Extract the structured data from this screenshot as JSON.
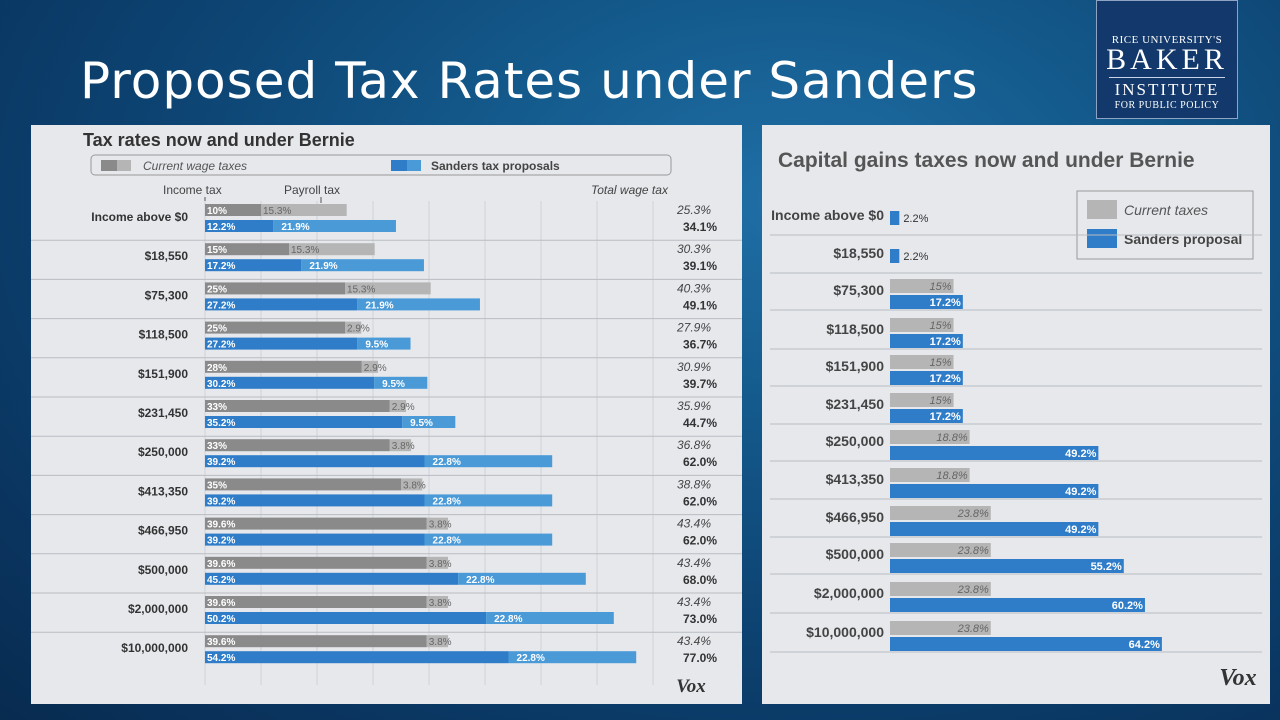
{
  "slide": {
    "title": "Proposed Tax Rates under Sanders"
  },
  "logo": {
    "line1": "RICE UNIVERSITY'S",
    "line2": "BAKER",
    "line3": "INSTITUTE",
    "line4": "FOR PUBLIC POLICY"
  },
  "colors": {
    "gray_dark": "#8a8a8a",
    "gray_light": "#b5b5b5",
    "blue_dark": "#2f7cc8",
    "blue_light": "#4a9ad8",
    "panel_bg": "#e6e8ec",
    "slide_bg": "#0d4574"
  },
  "chart_data": [
    {
      "type": "bar",
      "title": "Tax rates now and under Bernie",
      "legend": [
        "Current wage taxes",
        "Sanders tax proposals"
      ],
      "column_headers": {
        "income_tax": "Income tax",
        "payroll_tax": "Payroll tax",
        "total": "Total wage tax"
      },
      "categories": [
        "Income above $0",
        "$18,550",
        "$75,300",
        "$118,500",
        "$151,900",
        "$231,450",
        "$250,000",
        "$413,350",
        "$466,950",
        "$500,000",
        "$2,000,000",
        "$10,000,000"
      ],
      "series": [
        {
          "name": "Current wage taxes",
          "income": [
            10,
            15,
            25,
            25,
            28,
            33,
            33,
            35,
            39.6,
            39.6,
            39.6,
            39.6
          ],
          "payroll": [
            15.3,
            15.3,
            15.3,
            2.9,
            2.9,
            2.9,
            3.8,
            3.8,
            3.8,
            3.8,
            3.8,
            3.8
          ],
          "total_labels": [
            "25.3%",
            "30.3%",
            "40.3%",
            "27.9%",
            "30.9%",
            "35.9%",
            "36.8%",
            "38.8%",
            "43.4%",
            "43.4%",
            "43.4%",
            "43.4%"
          ]
        },
        {
          "name": "Sanders tax proposals",
          "income": [
            12.2,
            17.2,
            27.2,
            27.2,
            30.2,
            35.2,
            39.2,
            39.2,
            39.2,
            45.2,
            50.2,
            54.2
          ],
          "payroll": [
            21.9,
            21.9,
            21.9,
            9.5,
            9.5,
            9.5,
            22.8,
            22.8,
            22.8,
            22.8,
            22.8,
            22.8
          ],
          "total_labels": [
            "34.1%",
            "39.1%",
            "49.1%",
            "36.7%",
            "39.7%",
            "44.7%",
            "62.0%",
            "62.0%",
            "62.0%",
            "68.0%",
            "73.0%",
            "77.0%"
          ]
        }
      ],
      "source_mark": "Vox"
    },
    {
      "type": "bar",
      "title": "Capital gains taxes now and under Bernie",
      "legend": [
        "Current taxes",
        "Sanders proposal"
      ],
      "categories": [
        "Income above $0",
        "$18,550",
        "$75,300",
        "$118,500",
        "$151,900",
        "$231,450",
        "$250,000",
        "$413,350",
        "$466,950",
        "$500,000",
        "$2,000,000",
        "$10,000,000"
      ],
      "series": [
        {
          "name": "Current taxes",
          "values": [
            0,
            0,
            15,
            15,
            15,
            15,
            18.8,
            18.8,
            23.8,
            23.8,
            23.8,
            23.8
          ]
        },
        {
          "name": "Sanders proposal",
          "values": [
            2.2,
            2.2,
            17.2,
            17.2,
            17.2,
            17.2,
            49.2,
            49.2,
            49.2,
            55.2,
            60.2,
            64.2
          ]
        }
      ],
      "source_mark": "Vox"
    }
  ]
}
